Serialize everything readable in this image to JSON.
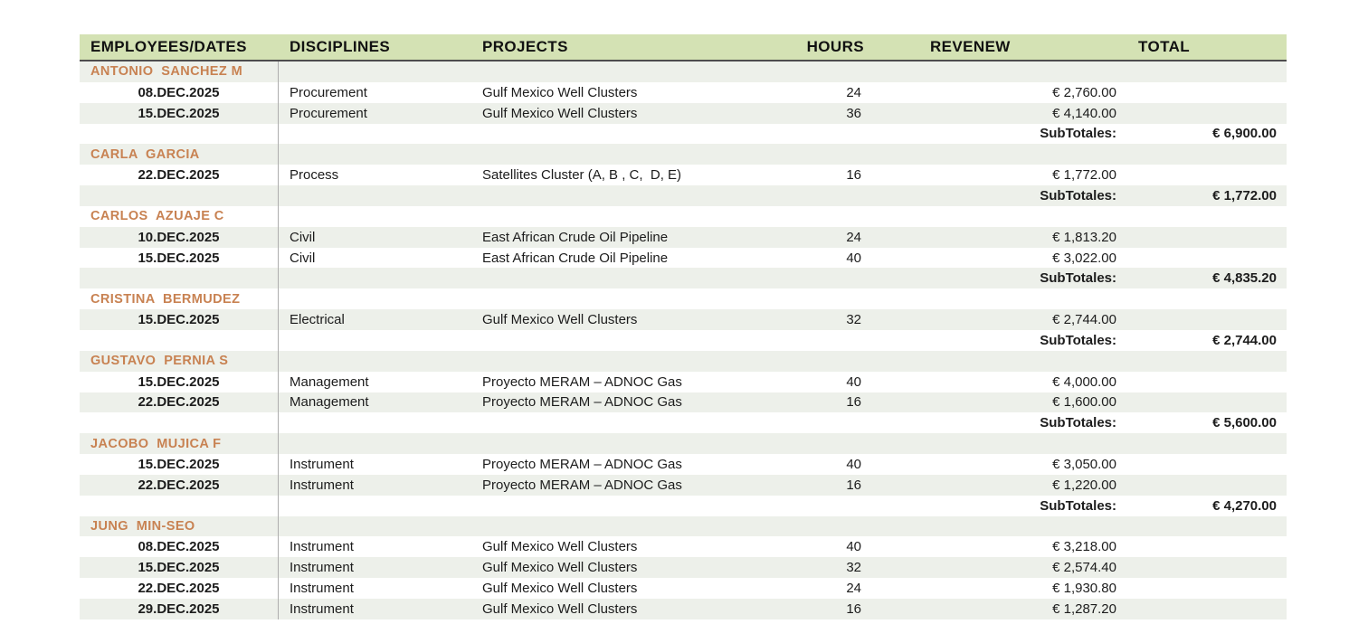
{
  "table": {
    "columns": [
      "EMPLOYEES/DATES",
      "DISCIPLINES",
      "PROJECTS",
      "HOURS",
      "REVENEW",
      "TOTAL"
    ],
    "subtotal_label": "SubTotales:",
    "colors": {
      "header_bg": "#d4e2b4",
      "header_border": "#4d4d4d",
      "stripe_bg": "#edf0ea",
      "employee_name": "#c88252",
      "divider_line": "#aeaeae",
      "text": "#1c1c1c"
    },
    "groups": [
      {
        "employee": "ANTONIO  SANCHEZ M",
        "entries": [
          {
            "date": "08.DEC.2025",
            "discipline": "Procurement",
            "project": "Gulf Mexico Well Clusters",
            "hours": "24",
            "revenue": "€ 2,760.00"
          },
          {
            "date": "15.DEC.2025",
            "discipline": "Procurement",
            "project": "Gulf Mexico Well Clusters",
            "hours": "36",
            "revenue": "€ 4,140.00"
          }
        ],
        "subtotal": "€ 6,900.00"
      },
      {
        "employee": "CARLA  GARCIA",
        "entries": [
          {
            "date": "22.DEC.2025",
            "discipline": "Process",
            "project": "Satellites Cluster (A, B , C,  D, E)",
            "hours": "16",
            "revenue": "€ 1,772.00"
          }
        ],
        "subtotal": "€ 1,772.00"
      },
      {
        "employee": "CARLOS  AZUAJE C",
        "entries": [
          {
            "date": "10.DEC.2025",
            "discipline": "Civil",
            "project": "East African Crude Oil Pipeline",
            "hours": "24",
            "revenue": "€ 1,813.20"
          },
          {
            "date": "15.DEC.2025",
            "discipline": "Civil",
            "project": "East African Crude Oil Pipeline",
            "hours": "40",
            "revenue": "€ 3,022.00"
          }
        ],
        "subtotal": "€ 4,835.20"
      },
      {
        "employee": "CRISTINA  BERMUDEZ",
        "entries": [
          {
            "date": "15.DEC.2025",
            "discipline": "Electrical",
            "project": "Gulf Mexico Well Clusters",
            "hours": "32",
            "revenue": "€ 2,744.00"
          }
        ],
        "subtotal": "€ 2,744.00"
      },
      {
        "employee": "GUSTAVO  PERNIA S",
        "entries": [
          {
            "date": "15.DEC.2025",
            "discipline": "Management",
            "project": "Proyecto MERAM – ADNOC Gas",
            "hours": "40",
            "revenue": "€ 4,000.00"
          },
          {
            "date": "22.DEC.2025",
            "discipline": "Management",
            "project": "Proyecto MERAM – ADNOC Gas",
            "hours": "16",
            "revenue": "€ 1,600.00"
          }
        ],
        "subtotal": "€ 5,600.00"
      },
      {
        "employee": "JACOBO  MUJICA F",
        "entries": [
          {
            "date": "15.DEC.2025",
            "discipline": "Instrument",
            "project": "Proyecto MERAM – ADNOC Gas",
            "hours": "40",
            "revenue": "€ 3,050.00"
          },
          {
            "date": "22.DEC.2025",
            "discipline": "Instrument",
            "project": "Proyecto MERAM – ADNOC Gas",
            "hours": "16",
            "revenue": "€ 1,220.00"
          }
        ],
        "subtotal": "€ 4,270.00"
      },
      {
        "employee": "JUNG  MIN-SEO",
        "entries": [
          {
            "date": "08.DEC.2025",
            "discipline": "Instrument",
            "project": "Gulf Mexico Well Clusters",
            "hours": "40",
            "revenue": "€ 3,218.00"
          },
          {
            "date": "15.DEC.2025",
            "discipline": "Instrument",
            "project": "Gulf Mexico Well Clusters",
            "hours": "32",
            "revenue": "€ 2,574.40"
          },
          {
            "date": "22.DEC.2025",
            "discipline": "Instrument",
            "project": "Gulf Mexico Well Clusters",
            "hours": "24",
            "revenue": "€ 1,930.80"
          },
          {
            "date": "29.DEC.2025",
            "discipline": "Instrument",
            "project": "Gulf Mexico Well Clusters",
            "hours": "16",
            "revenue": "€ 1,287.20"
          }
        ],
        "subtotal": null
      }
    ]
  }
}
